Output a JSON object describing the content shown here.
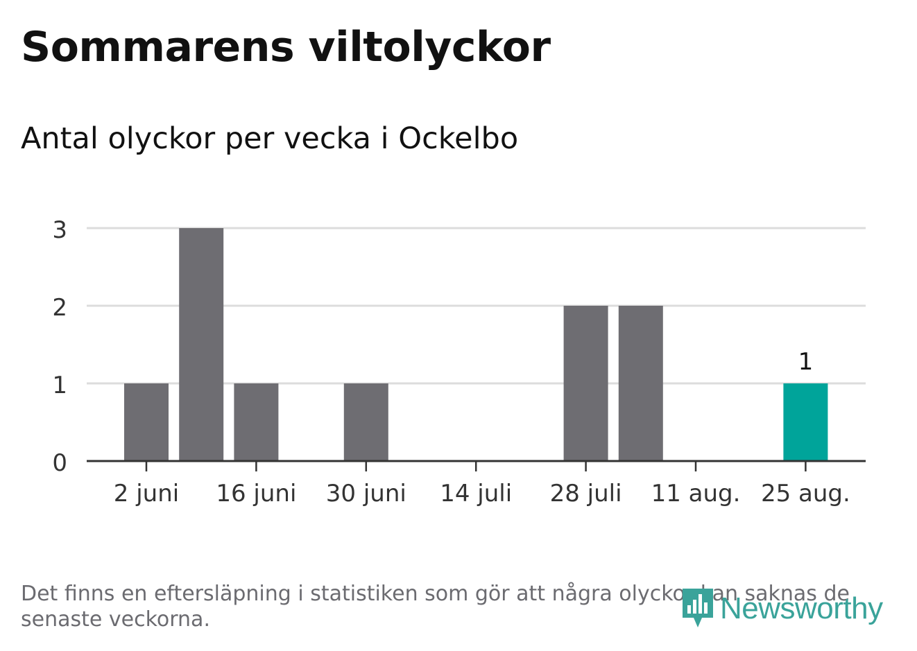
{
  "title": "Sommarens viltolyckor",
  "subtitle": "Antal olyckor per vecka i Ockelbo",
  "note": "Det finns en eftersläpning i statistiken som gör att några olyckor kan saknas de senaste veckorna.",
  "logo": {
    "text": "Newsworthy",
    "icon": "bar-chart-speech-bubble-icon"
  },
  "colors": {
    "bar": "#6e6d72",
    "highlight": "#00a49a",
    "grid": "#dcdcdc",
    "axis": "#333333",
    "text": "#111111",
    "muted": "#6b6b70",
    "brand": "#3aa39a"
  },
  "chart_data": {
    "type": "bar",
    "title": "Sommarens viltolyckor",
    "subtitle": "Antal olyckor per vecka i Ockelbo",
    "x": [
      "2 juni",
      "9 juni",
      "16 juni",
      "23 juni",
      "30 juni",
      "7 juli",
      "14 juli",
      "21 juli",
      "28 juli",
      "4 aug.",
      "11 aug.",
      "18 aug.",
      "25 aug."
    ],
    "values": [
      1,
      3,
      1,
      0,
      1,
      0,
      0,
      0,
      2,
      2,
      0,
      0,
      1
    ],
    "highlight": "25 aug.",
    "x_ticks": [
      "2 juni",
      "16 juni",
      "30 juni",
      "14 juli",
      "28 juli",
      "11 aug.",
      "25 aug."
    ],
    "y_ticks": [
      0,
      1,
      2,
      3
    ],
    "ylim": [
      0,
      3
    ],
    "grid": true,
    "data_labels": [
      {
        "x": "25 aug.",
        "label": "1"
      }
    ]
  }
}
